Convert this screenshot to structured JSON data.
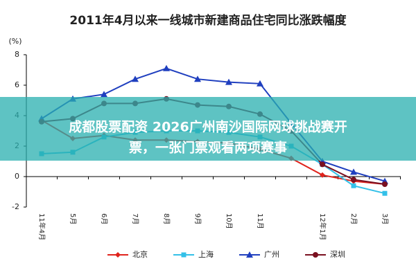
{
  "chart_data": {
    "type": "line",
    "title": "2011年4月以来一线城市新建商品住宅同比涨跌幅度",
    "y_label": "(%)",
    "categories": [
      "11年4月",
      "5月",
      "6月",
      "7月",
      "8月",
      "9月",
      "10月",
      "11月",
      null,
      "12年1月",
      "2月",
      "3月"
    ],
    "series": [
      {
        "name": "北京",
        "color": "#e0231c",
        "marker": "diamond",
        "values": [
          3.7,
          2.5,
          2.7,
          2.4,
          2.4,
          2.3,
          2.2,
          1.8,
          1.2,
          0.1,
          -0.3,
          -0.5
        ]
      },
      {
        "name": "上海",
        "color": "#33c0e8",
        "marker": "square",
        "values": [
          1.5,
          1.6,
          2.6,
          2.9,
          3.0,
          3.0,
          2.9,
          2.6,
          2.0,
          0.8,
          -0.6,
          -1.1
        ]
      },
      {
        "name": "广州",
        "color": "#1f3fbf",
        "marker": "triangle",
        "values": [
          3.8,
          5.1,
          5.4,
          6.4,
          7.1,
          6.4,
          6.2,
          6.1,
          3.5,
          1.0,
          0.3,
          -0.3
        ]
      },
      {
        "name": "深圳",
        "color": "#7a1020",
        "marker": "circle",
        "values": [
          3.6,
          3.8,
          4.8,
          4.8,
          5.1,
          4.7,
          4.6,
          4.1,
          3.0,
          0.8,
          -0.2,
          -0.5
        ]
      }
    ],
    "ylim": [
      -2,
      8
    ],
    "yticks": [
      -2,
      0,
      2,
      4,
      6,
      8
    ],
    "legend": "bottom"
  },
  "overlay_text": [
    "成都股票配资 2026广州南沙国际网球挑战赛开",
    "票，一张门票观看两项赛事"
  ]
}
